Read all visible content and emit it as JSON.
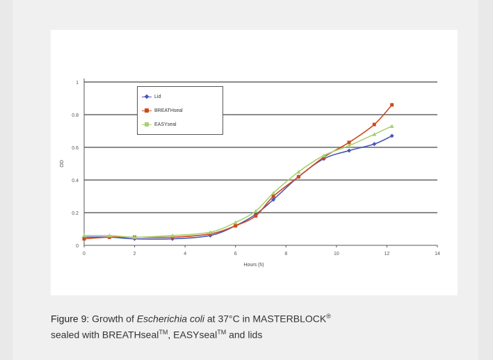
{
  "caption": {
    "figure_label": "Figure 9:",
    "text_before_italic": " Growth of ",
    "italic": "Escherichia coli",
    "text_after_italic": " at 37°C in MASTERBLOCK",
    "reg": "®",
    "line2_a": "sealed with BREATHseal",
    "tm1": "TM",
    "line2_b": ", EASYseal",
    "tm2": "TM",
    "line2_c": " and lids"
  },
  "chart_data": {
    "type": "line",
    "title": "",
    "xlabel": "Hours (h)",
    "ylabel": "OD",
    "xlim": [
      0,
      14
    ],
    "ylim": [
      0,
      1
    ],
    "xticks": [
      "0",
      "2",
      "4",
      "6",
      "8",
      "10",
      "12",
      "14"
    ],
    "yticks": [
      "0",
      "0.2",
      "0.4",
      "0.6",
      "0.8",
      "1"
    ],
    "grid": true,
    "legend": "top-left",
    "series": [
      {
        "name": "Lid",
        "color": "#4a55b8",
        "marker": "diamond",
        "x": [
          0,
          1,
          2,
          3.5,
          5,
          6,
          6.8,
          7.5,
          8.5,
          9.5,
          10.5,
          11.5,
          12.2
        ],
        "y": [
          0.05,
          0.05,
          0.04,
          0.04,
          0.06,
          0.12,
          0.19,
          0.28,
          0.42,
          0.53,
          0.58,
          0.62,
          0.67
        ]
      },
      {
        "name": "BREATHseal",
        "color": "#cc4a1e",
        "marker": "square",
        "x": [
          0,
          1,
          2,
          3.5,
          5,
          6,
          6.8,
          7.5,
          8.5,
          9.5,
          10.5,
          11.5,
          12.2
        ],
        "y": [
          0.04,
          0.05,
          0.05,
          0.05,
          0.07,
          0.12,
          0.18,
          0.3,
          0.42,
          0.54,
          0.63,
          0.74,
          0.86
        ]
      },
      {
        "name": "EASYseal",
        "color": "#a8d070",
        "marker": "triangle",
        "x": [
          0,
          1,
          2,
          3.5,
          5,
          6,
          6.8,
          7.5,
          8.5,
          9.5,
          10.5,
          11.5,
          12.2
        ],
        "y": [
          0.06,
          0.06,
          0.05,
          0.06,
          0.08,
          0.14,
          0.21,
          0.32,
          0.45,
          0.55,
          0.61,
          0.68,
          0.73
        ]
      }
    ]
  }
}
